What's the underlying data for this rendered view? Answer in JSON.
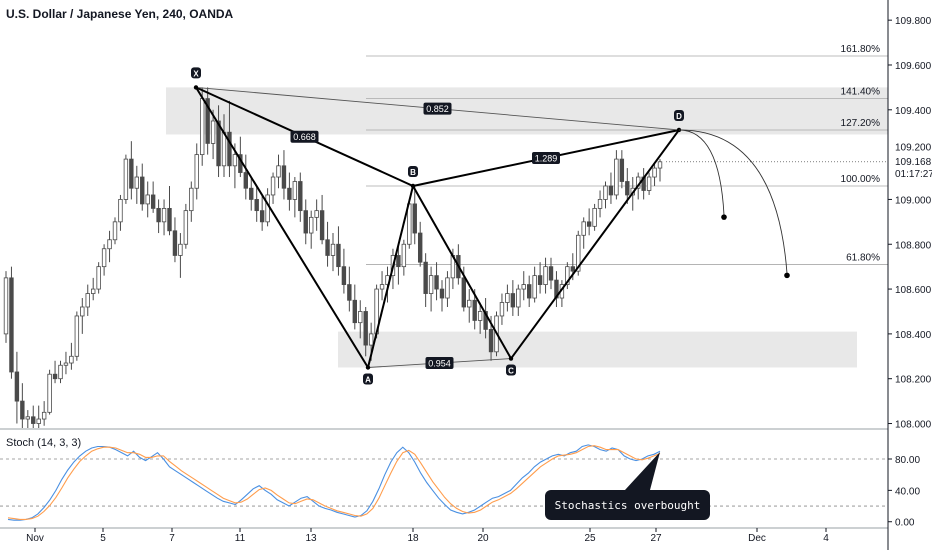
{
  "title": "U.S. Dollar / Japanese Yen, 240, OANDA",
  "chart_data": [
    {
      "type": "candlestick",
      "symbol": "U.S. Dollar / Japanese Yen",
      "interval": "240",
      "source": "OANDA",
      "price_axis": {
        "ticks": [
          "109.800",
          "109.600",
          "109.400",
          "109.000",
          "108.800",
          "108.600",
          "108.400",
          "108.200",
          "108.000"
        ],
        "partial_tick": "109.200",
        "ylim": [
          107.98,
          109.89
        ],
        "last_price": "109.168",
        "countdown": "01:17:27"
      },
      "date_axis": {
        "labels": [
          "Nov",
          "5",
          "7",
          "11",
          "13",
          "18",
          "20",
          "25",
          "27",
          "Dec",
          "4"
        ]
      },
      "fib_levels": [
        {
          "label": "161.80%",
          "price": 109.64
        },
        {
          "label": "141.40%",
          "price": 109.45
        },
        {
          "label": "127.20%",
          "price": 109.31
        },
        {
          "label": "100.00%",
          "price": 109.06
        },
        {
          "label": "61.80%",
          "price": 108.71
        }
      ],
      "zones": [
        {
          "from": "7",
          "to": "25",
          "price_low": 109.29,
          "price_high": 109.5
        },
        {
          "from": "13",
          "to": "Dec",
          "price_low": 108.25,
          "price_high": 108.41
        }
      ],
      "pattern": {
        "points": [
          {
            "label": "X",
            "date": "8",
            "price": 109.5
          },
          {
            "label": "A",
            "date": "15",
            "price": 108.25
          },
          {
            "label": "B",
            "date": "18",
            "price": 109.06
          },
          {
            "label": "C",
            "date": "21",
            "price": 108.29
          },
          {
            "label": "D",
            "date": "28",
            "price": 109.31
          }
        ],
        "ratios": [
          {
            "text": "0.668",
            "between": [
              "X",
              "B"
            ]
          },
          {
            "text": "0.852",
            "between": [
              "X",
              "D"
            ]
          },
          {
            "text": "1.289",
            "between": [
              "B",
              "D"
            ]
          },
          {
            "text": "0.954",
            "between": [
              "A",
              "C"
            ]
          }
        ],
        "projections": [
          {
            "date": "29",
            "price": 108.93
          },
          {
            "date": "Dec",
            "price": 108.67
          }
        ]
      },
      "candles": [
        [
          108.4,
          108.68,
          108.36,
          108.65
        ],
        [
          108.65,
          108.7,
          108.2,
          108.23
        ],
        [
          108.23,
          108.32,
          108.0,
          108.1
        ],
        [
          108.1,
          108.18,
          107.98,
          108.02
        ],
        [
          108.02,
          108.06,
          107.98,
          108.03
        ],
        [
          108.03,
          108.08,
          107.98,
          108.0
        ],
        [
          108.0,
          108.08,
          107.98,
          108.02
        ],
        [
          108.02,
          108.1,
          107.99,
          108.05
        ],
        [
          108.05,
          108.24,
          108.04,
          108.22
        ],
        [
          108.22,
          108.28,
          108.18,
          108.2
        ],
        [
          108.2,
          108.28,
          108.18,
          108.26
        ],
        [
          108.26,
          108.32,
          108.22,
          108.27
        ],
        [
          108.27,
          108.36,
          108.24,
          108.3
        ],
        [
          108.3,
          108.5,
          108.28,
          108.48
        ],
        [
          108.48,
          108.56,
          108.4,
          108.52
        ],
        [
          108.52,
          108.62,
          108.48,
          108.58
        ],
        [
          108.58,
          108.65,
          108.55,
          108.6
        ],
        [
          108.6,
          108.72,
          108.58,
          108.7
        ],
        [
          108.7,
          108.8,
          108.66,
          108.78
        ],
        [
          108.78,
          108.86,
          108.72,
          108.82
        ],
        [
          108.82,
          108.92,
          108.8,
          108.9
        ],
        [
          108.9,
          109.02,
          108.86,
          109.0
        ],
        [
          109.0,
          109.2,
          108.98,
          109.18
        ],
        [
          109.18,
          109.26,
          109.0,
          109.05
        ],
        [
          109.05,
          109.15,
          108.98,
          109.1
        ],
        [
          109.1,
          109.16,
          108.95,
          108.98
        ],
        [
          108.98,
          109.08,
          108.92,
          109.02
        ],
        [
          109.02,
          109.08,
          108.94,
          108.96
        ],
        [
          108.96,
          109.0,
          108.85,
          108.9
        ],
        [
          108.9,
          109.0,
          108.84,
          108.96
        ],
        [
          108.96,
          109.06,
          108.84,
          108.86
        ],
        [
          108.86,
          108.92,
          108.72,
          108.75
        ],
        [
          108.75,
          108.85,
          108.65,
          108.8
        ],
        [
          108.8,
          108.98,
          108.78,
          108.95
        ],
        [
          108.95,
          109.08,
          108.9,
          109.05
        ],
        [
          109.05,
          109.25,
          109.0,
          109.2
        ],
        [
          109.2,
          109.5,
          109.15,
          109.45
        ],
        [
          109.45,
          109.5,
          109.2,
          109.25
        ],
        [
          109.25,
          109.4,
          109.18,
          109.35
        ],
        [
          109.35,
          109.42,
          109.1,
          109.15
        ],
        [
          109.15,
          109.38,
          109.1,
          109.3
        ],
        [
          109.3,
          109.44,
          109.1,
          109.15
        ],
        [
          109.15,
          109.25,
          109.05,
          109.2
        ],
        [
          109.2,
          109.28,
          109.1,
          109.12
        ],
        [
          109.12,
          109.2,
          109.0,
          109.05
        ],
        [
          109.05,
          109.1,
          108.95,
          109.0
        ],
        [
          109.0,
          109.06,
          108.9,
          108.95
        ],
        [
          108.95,
          109.02,
          108.86,
          108.9
        ],
        [
          108.9,
          109.05,
          108.88,
          109.02
        ],
        [
          109.02,
          109.12,
          108.98,
          109.1
        ],
        [
          109.1,
          109.2,
          109.05,
          109.15
        ],
        [
          109.15,
          109.22,
          109.0,
          109.05
        ],
        [
          109.05,
          109.12,
          108.95,
          109.0
        ],
        [
          109.0,
          109.1,
          108.92,
          109.08
        ],
        [
          109.08,
          109.12,
          108.9,
          108.95
        ],
        [
          108.95,
          109.0,
          108.8,
          108.85
        ],
        [
          108.85,
          108.95,
          108.78,
          108.92
        ],
        [
          108.92,
          109.0,
          108.86,
          108.95
        ],
        [
          108.95,
          109.02,
          108.8,
          108.82
        ],
        [
          108.82,
          108.9,
          108.7,
          108.75
        ],
        [
          108.75,
          108.85,
          108.68,
          108.8
        ],
        [
          108.8,
          108.88,
          108.66,
          108.7
        ],
        [
          108.7,
          108.78,
          108.58,
          108.62
        ],
        [
          108.62,
          108.7,
          108.5,
          108.55
        ],
        [
          108.55,
          108.62,
          108.42,
          108.45
        ],
        [
          108.45,
          108.55,
          108.38,
          108.5
        ],
        [
          108.5,
          108.52,
          108.3,
          108.35
        ],
        [
          108.35,
          108.45,
          108.28,
          108.4
        ],
        [
          108.4,
          108.62,
          108.38,
          108.6
        ],
        [
          108.6,
          108.68,
          108.55,
          108.62
        ],
        [
          108.62,
          108.7,
          108.54,
          108.66
        ],
        [
          108.66,
          108.78,
          108.6,
          108.75
        ],
        [
          108.75,
          108.8,
          108.62,
          108.7
        ],
        [
          108.7,
          108.82,
          108.66,
          108.8
        ],
        [
          108.8,
          109.0,
          108.78,
          108.98
        ],
        [
          108.98,
          109.06,
          108.8,
          108.85
        ],
        [
          108.85,
          108.9,
          108.7,
          108.72
        ],
        [
          108.72,
          108.76,
          108.52,
          108.58
        ],
        [
          108.58,
          108.7,
          108.5,
          108.66
        ],
        [
          108.66,
          108.72,
          108.55,
          108.6
        ],
        [
          108.6,
          108.64,
          108.5,
          108.56
        ],
        [
          108.56,
          108.68,
          108.52,
          108.65
        ],
        [
          108.65,
          108.78,
          108.6,
          108.75
        ],
        [
          108.75,
          108.8,
          108.62,
          108.65
        ],
        [
          108.65,
          108.7,
          108.5,
          108.52
        ],
        [
          108.52,
          108.6,
          108.45,
          108.55
        ],
        [
          108.55,
          108.6,
          108.42,
          108.46
        ],
        [
          108.46,
          108.54,
          108.4,
          108.5
        ],
        [
          108.5,
          108.56,
          108.38,
          108.42
        ],
        [
          108.42,
          108.48,
          108.28,
          108.32
        ],
        [
          108.32,
          108.5,
          108.3,
          108.48
        ],
        [
          108.48,
          108.58,
          108.44,
          108.54
        ],
        [
          108.54,
          108.62,
          108.5,
          108.58
        ],
        [
          108.58,
          108.64,
          108.48,
          108.52
        ],
        [
          108.52,
          108.62,
          108.48,
          108.6
        ],
        [
          108.6,
          108.68,
          108.55,
          108.62
        ],
        [
          108.62,
          108.66,
          108.52,
          108.56
        ],
        [
          108.56,
          108.7,
          108.54,
          108.66
        ],
        [
          108.66,
          108.72,
          108.58,
          108.62
        ],
        [
          108.62,
          108.74,
          108.58,
          108.7
        ],
        [
          108.7,
          108.74,
          108.6,
          108.64
        ],
        [
          108.64,
          108.68,
          108.52,
          108.56
        ],
        [
          108.56,
          108.64,
          108.52,
          108.62
        ],
        [
          108.62,
          108.72,
          108.6,
          108.7
        ],
        [
          108.7,
          108.76,
          108.64,
          108.68
        ],
        [
          108.68,
          108.86,
          108.66,
          108.84
        ],
        [
          108.84,
          108.92,
          108.78,
          108.9
        ],
        [
          108.9,
          108.96,
          108.84,
          108.88
        ],
        [
          108.88,
          108.98,
          108.86,
          108.96
        ],
        [
          108.96,
          109.04,
          108.92,
          109.0
        ],
        [
          109.0,
          109.08,
          108.96,
          109.06
        ],
        [
          109.06,
          109.12,
          108.98,
          109.02
        ],
        [
          109.02,
          109.22,
          109.0,
          109.18
        ],
        [
          109.18,
          109.22,
          109.05,
          109.08
        ],
        [
          109.08,
          109.14,
          108.98,
          109.02
        ],
        [
          109.02,
          109.1,
          108.95,
          109.05
        ],
        [
          109.05,
          109.12,
          109.0,
          109.1
        ],
        [
          109.1,
          109.14,
          109.0,
          109.04
        ],
        [
          109.04,
          109.12,
          109.02,
          109.1
        ],
        [
          109.1,
          109.16,
          109.06,
          109.14
        ],
        [
          109.14,
          109.18,
          109.08,
          109.168
        ]
      ]
    },
    {
      "type": "line",
      "title": "Stoch (14, 3, 3)",
      "ylim": [
        -8,
        117
      ],
      "y_ticks": [
        "80.00",
        "40.00",
        "0.00"
      ],
      "reference_lines": [
        80,
        20
      ],
      "series": [
        {
          "color": "#4a90e2",
          "values": [
            3,
            2,
            2,
            3,
            5,
            10,
            18,
            28,
            40,
            54,
            66,
            76,
            84,
            90,
            94,
            96,
            96,
            95,
            92,
            88,
            84,
            90,
            82,
            78,
            83,
            88,
            80,
            70,
            65,
            60,
            55,
            50,
            45,
            40,
            35,
            30,
            26,
            24,
            22,
            28,
            35,
            42,
            46,
            40,
            35,
            28,
            24,
            20,
            25,
            30,
            32,
            26,
            20,
            17,
            15,
            12,
            10,
            8,
            6,
            8,
            14,
            26,
            42,
            60,
            76,
            88,
            95,
            88,
            76,
            62,
            50,
            40,
            30,
            22,
            15,
            12,
            10,
            12,
            15,
            20,
            25,
            30,
            32,
            36,
            40,
            48,
            56,
            62,
            70,
            76,
            80,
            84,
            86,
            84,
            88,
            90,
            96,
            98,
            96,
            92,
            90,
            94,
            92,
            84,
            80,
            78,
            80,
            84,
            86,
            90
          ]
        },
        {
          "color": "#ff9d4d",
          "values": [
            5,
            4,
            3,
            3,
            4,
            7,
            13,
            21,
            31,
            43,
            56,
            67,
            77,
            84,
            90,
            93,
            95,
            95,
            94,
            91,
            88,
            88,
            86,
            82,
            82,
            84,
            84,
            77,
            71,
            65,
            60,
            55,
            50,
            45,
            40,
            35,
            30,
            27,
            24,
            25,
            29,
            35,
            41,
            43,
            40,
            34,
            29,
            24,
            23,
            26,
            29,
            28,
            24,
            20,
            17,
            14,
            12,
            10,
            8,
            7,
            10,
            17,
            30,
            46,
            62,
            77,
            88,
            91,
            86,
            75,
            63,
            51,
            41,
            31,
            23,
            17,
            13,
            11,
            12,
            15,
            20,
            25,
            28,
            32,
            36,
            42,
            49,
            56,
            63,
            70,
            75,
            80,
            84,
            85,
            86,
            88,
            92,
            96,
            97,
            95,
            92,
            92,
            92,
            88,
            84,
            80,
            79,
            81,
            84,
            87
          ]
        }
      ]
    }
  ],
  "callout": {
    "text": "Stochastics overbought"
  }
}
